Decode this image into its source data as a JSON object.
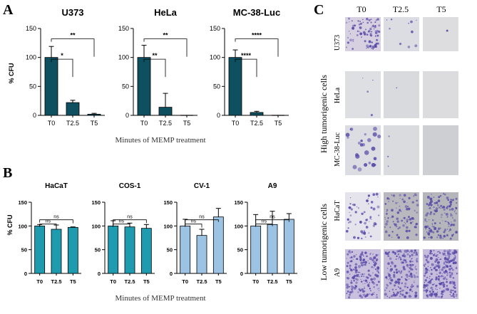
{
  "panels": {
    "a": {
      "letter": "A",
      "xcaption": "Minutes of MEMP treatment",
      "ylabel": "% CFU"
    },
    "b": {
      "letter": "B",
      "xcaption": "Minutes of MEMP treatment",
      "ylabel": "% CFU"
    },
    "c": {
      "letter": "C",
      "columns": [
        "T0",
        "T2.5",
        "T5"
      ],
      "rows": [
        "U373",
        "HeLa",
        "MC-38-Luc",
        "HaCaT",
        "A9"
      ],
      "group_high": "High tumorigenic cells",
      "group_low": "Low tumorigenic cells"
    }
  },
  "colors": {
    "panel_a_bar": "#0e5060",
    "panel_b_teal": "#1f9bb0",
    "panel_b_lightblue": "#9cc2e4",
    "colony_stain": "#5a4aa8"
  },
  "chart_data": [
    {
      "type": "bar",
      "panel": "A",
      "title": "U373",
      "categories": [
        "T0",
        "T2.5",
        "T5"
      ],
      "values": [
        100,
        22,
        2
      ],
      "errors": [
        19,
        4,
        1.5
      ],
      "ylabel": "% CFU",
      "ylim": [
        0,
        150
      ],
      "yticks": [
        0,
        50,
        100,
        150
      ],
      "significance": [
        {
          "pair": [
            "T0",
            "T2.5"
          ],
          "label": "*"
        },
        {
          "pair": [
            "T0",
            "T5"
          ],
          "label": "**"
        }
      ]
    },
    {
      "type": "bar",
      "panel": "A",
      "title": "HeLa",
      "categories": [
        "T0",
        "T2.5",
        "T5"
      ],
      "values": [
        100,
        14,
        0
      ],
      "errors": [
        21,
        24,
        0
      ],
      "ylim": [
        0,
        150
      ],
      "yticks": [
        0,
        50,
        100,
        150
      ],
      "significance": [
        {
          "pair": [
            "T0",
            "T2.5"
          ],
          "label": "**"
        },
        {
          "pair": [
            "T0",
            "T5"
          ],
          "label": "**"
        }
      ]
    },
    {
      "type": "bar",
      "panel": "A",
      "title": "MC-38-Luc",
      "categories": [
        "T0",
        "T2.5",
        "T5"
      ],
      "values": [
        100,
        5,
        0
      ],
      "errors": [
        13,
        2,
        0
      ],
      "ylim": [
        0,
        150
      ],
      "yticks": [
        0,
        50,
        100,
        150
      ],
      "significance": [
        {
          "pair": [
            "T0",
            "T2.5"
          ],
          "label": "****"
        },
        {
          "pair": [
            "T0",
            "T5"
          ],
          "label": "****"
        }
      ]
    },
    {
      "type": "bar",
      "panel": "B",
      "title": "HaCaT",
      "categories": [
        "T0",
        "T2.5",
        "T5"
      ],
      "values": [
        100,
        93,
        97
      ],
      "errors": [
        3,
        9,
        1
      ],
      "ylabel": "% CFU",
      "ylim": [
        0,
        150
      ],
      "yticks": [
        0,
        50,
        100,
        150
      ],
      "significance": [
        {
          "pair": [
            "T0",
            "T2.5"
          ],
          "label": "ns"
        },
        {
          "pair": [
            "T0",
            "T5"
          ],
          "label": "ns"
        }
      ]
    },
    {
      "type": "bar",
      "panel": "B",
      "title": "COS-1",
      "categories": [
        "T0",
        "T2.5",
        "T5"
      ],
      "values": [
        100,
        98,
        95
      ],
      "errors": [
        11,
        8,
        8
      ],
      "ylim": [
        0,
        150
      ],
      "yticks": [
        0,
        50,
        100,
        150
      ],
      "significance": [
        {
          "pair": [
            "T0",
            "T2.5"
          ],
          "label": "ns"
        },
        {
          "pair": [
            "T0",
            "T5"
          ],
          "label": "ns"
        }
      ]
    },
    {
      "type": "bar",
      "panel": "B",
      "title": "CV-1",
      "categories": [
        "T0",
        "T2.5",
        "T5"
      ],
      "values": [
        100,
        80,
        119
      ],
      "errors": [
        14,
        13,
        18
      ],
      "ylim": [
        0,
        150
      ],
      "yticks": [
        0,
        50,
        100,
        150
      ],
      "significance": [
        {
          "pair": [
            "T0",
            "T2.5"
          ],
          "label": "ns"
        },
        {
          "pair": [
            "T0",
            "T5"
          ],
          "label": "ns"
        }
      ]
    },
    {
      "type": "bar",
      "panel": "B",
      "title": "A9",
      "categories": [
        "T0",
        "T2.5",
        "T5"
      ],
      "values": [
        100,
        103,
        114
      ],
      "errors": [
        24,
        28,
        12
      ],
      "ylim": [
        0,
        150
      ],
      "yticks": [
        0,
        50,
        100,
        150
      ],
      "significance": [
        {
          "pair": [
            "T0",
            "T2.5"
          ],
          "label": "ns"
        },
        {
          "pair": [
            "T0",
            "T5"
          ],
          "label": "ns"
        }
      ]
    }
  ]
}
